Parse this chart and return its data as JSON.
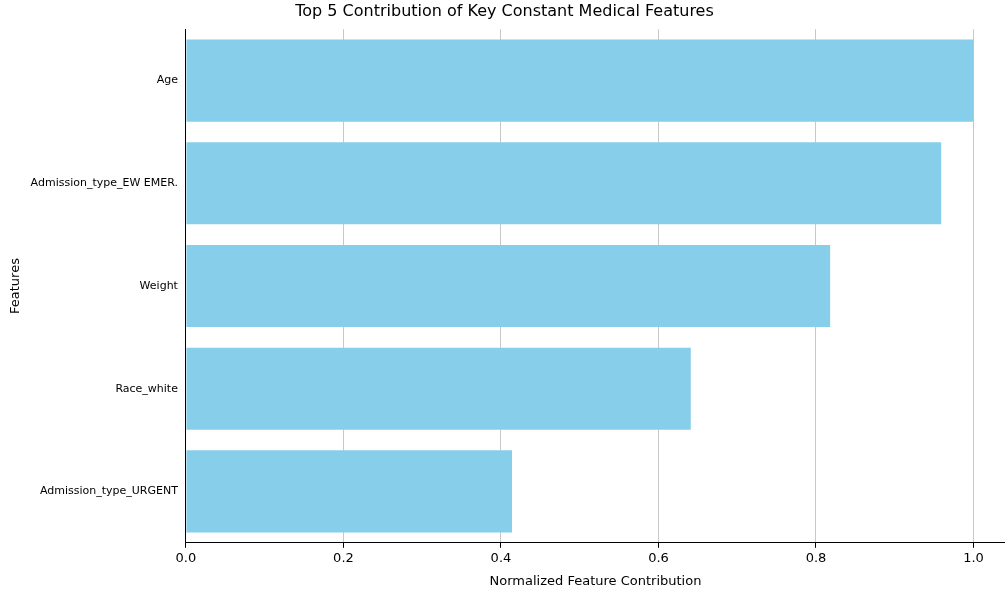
{
  "chart_data": {
    "type": "bar",
    "orientation": "horizontal",
    "title": "Top 5 Contribution of Key Constant Medical Features",
    "xlabel": "Normalized Feature Contribution",
    "ylabel": "Features",
    "categories": [
      "Age",
      "Admission_type_EW EMER.",
      "Weight",
      "Race_white",
      "Admission_type_URGENT"
    ],
    "values": [
      1.0,
      0.959,
      0.818,
      0.641,
      0.414
    ],
    "color": "#87ceeb",
    "xlim": [
      0,
      1.04
    ],
    "xticks": [
      {
        "value": 0,
        "label": "0.0"
      },
      {
        "value": 0.2,
        "label": "0.2"
      },
      {
        "value": 0.4,
        "label": "0.4"
      },
      {
        "value": 0.6,
        "label": "0.6"
      },
      {
        "value": 0.8,
        "label": "0.8"
      },
      {
        "value": 1,
        "label": "1.0"
      }
    ],
    "grid": "x",
    "legend": false
  }
}
